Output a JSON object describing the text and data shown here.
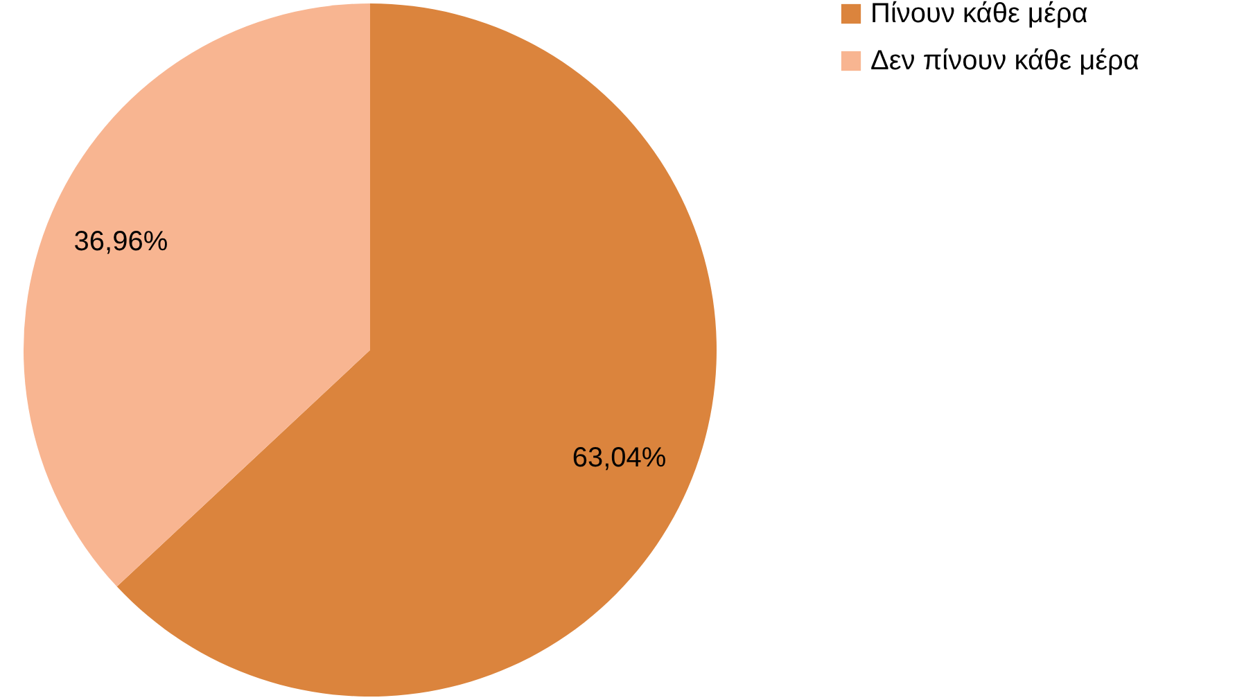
{
  "chart_data": {
    "type": "pie",
    "categories": [
      "Πίνουν κάθε μέρα",
      "Δεν πίνουν κάθε μέρα"
    ],
    "values": [
      63.04,
      36.96
    ],
    "colors": [
      "#db843d",
      "#f8b591"
    ],
    "value_labels": [
      "63,04%",
      "36,96%"
    ],
    "legend": "right"
  }
}
